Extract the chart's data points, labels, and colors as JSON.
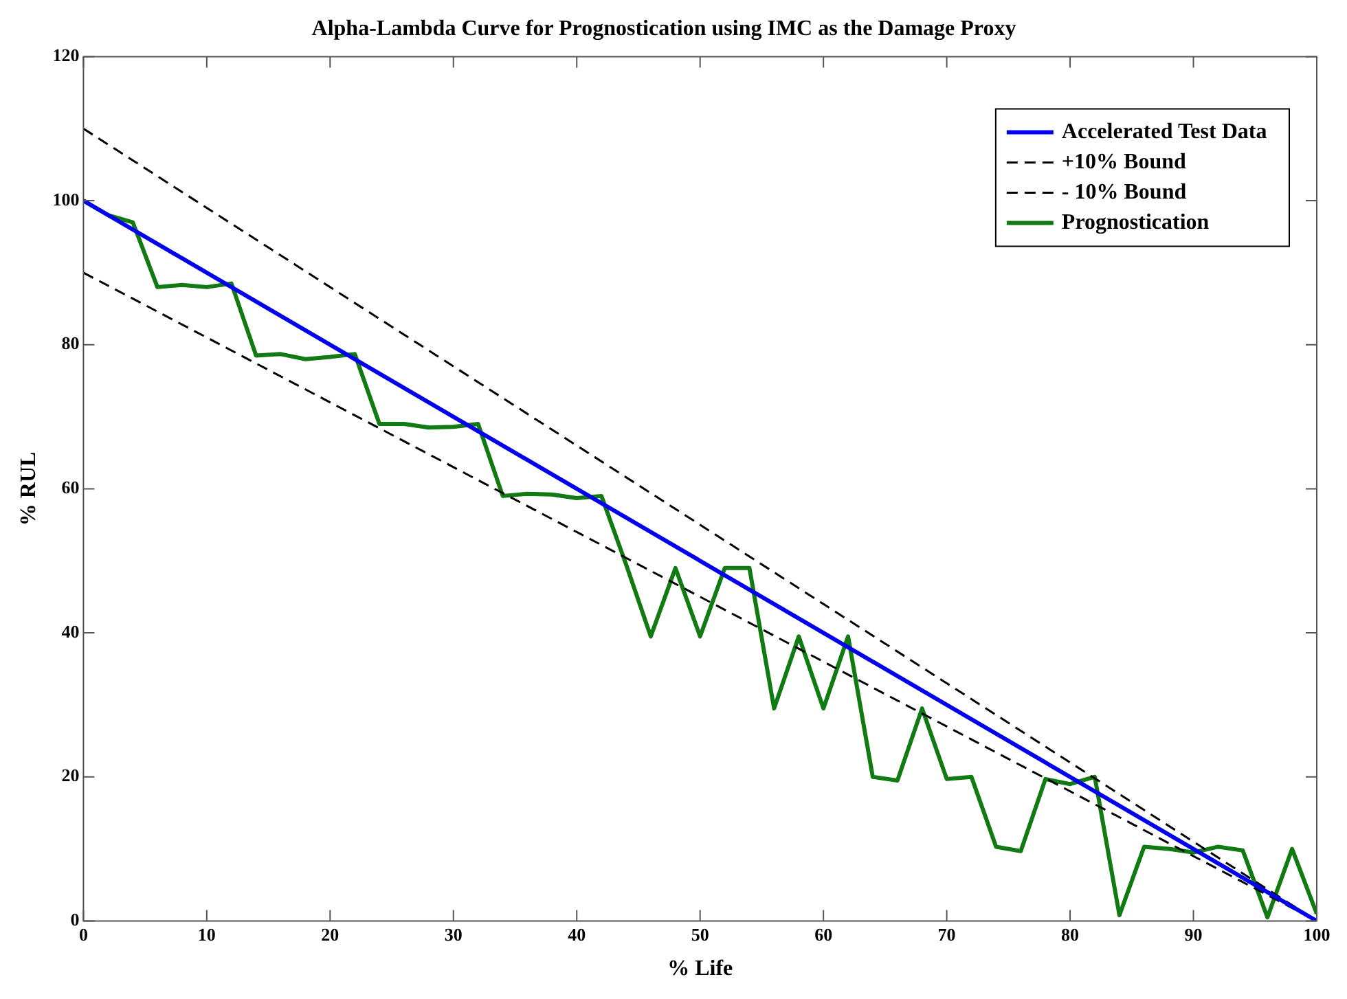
{
  "chart_data": {
    "type": "line",
    "title": "Alpha-Lambda Curve for Prognostication using IMC as the Damage Proxy",
    "xlabel": "% Life",
    "ylabel": "% RUL",
    "xlim": [
      0,
      100
    ],
    "ylim": [
      0,
      120
    ],
    "xticks": [
      0,
      10,
      20,
      30,
      40,
      50,
      60,
      70,
      80,
      90,
      100
    ],
    "yticks": [
      0,
      20,
      40,
      60,
      80,
      100,
      120
    ],
    "grid": false,
    "legend": "top right",
    "marker": "none",
    "series": [
      {
        "name": "Accelerated Test Data",
        "color": "#0000ee",
        "line_style": "solid",
        "x": [
          0,
          100
        ],
        "values": [
          100,
          0
        ]
      },
      {
        "name": "+10% Bound",
        "color": "#000000",
        "line_style": "dashed",
        "x": [
          0,
          100
        ],
        "values": [
          110,
          0
        ]
      },
      {
        "name": "- 10% Bound",
        "color": "#000000",
        "line_style": "dashed",
        "x": [
          0,
          100
        ],
        "values": [
          90,
          0
        ]
      },
      {
        "name": "Prognostication",
        "color": "#127a12",
        "line_style": "solid",
        "x": [
          0,
          2,
          4,
          6,
          8,
          10,
          12,
          14,
          16,
          18,
          20,
          22,
          24,
          26,
          28,
          30,
          32,
          34,
          36,
          38,
          40,
          42,
          44,
          46,
          48,
          50,
          52,
          54,
          56,
          58,
          60,
          62,
          64,
          66,
          68,
          70,
          72,
          74,
          76,
          78,
          80,
          82,
          84,
          86,
          88,
          90,
          92,
          94,
          96,
          98,
          100
        ],
        "values": [
          100,
          98,
          97,
          88,
          88.3,
          88,
          88.5,
          78.5,
          78.7,
          78,
          78.3,
          78.7,
          69,
          69,
          68.5,
          68.6,
          69,
          59,
          59.3,
          59.2,
          58.7,
          59,
          49.5,
          39.5,
          49,
          39.5,
          49,
          49,
          29.5,
          39.5,
          29.5,
          39.5,
          20,
          19.5,
          29.5,
          19.7,
          20,
          10.3,
          9.7,
          19.7,
          19,
          20,
          0.8,
          10.3,
          10,
          9.5,
          10.3,
          9.8,
          0.5,
          10,
          1
        ]
      }
    ]
  }
}
